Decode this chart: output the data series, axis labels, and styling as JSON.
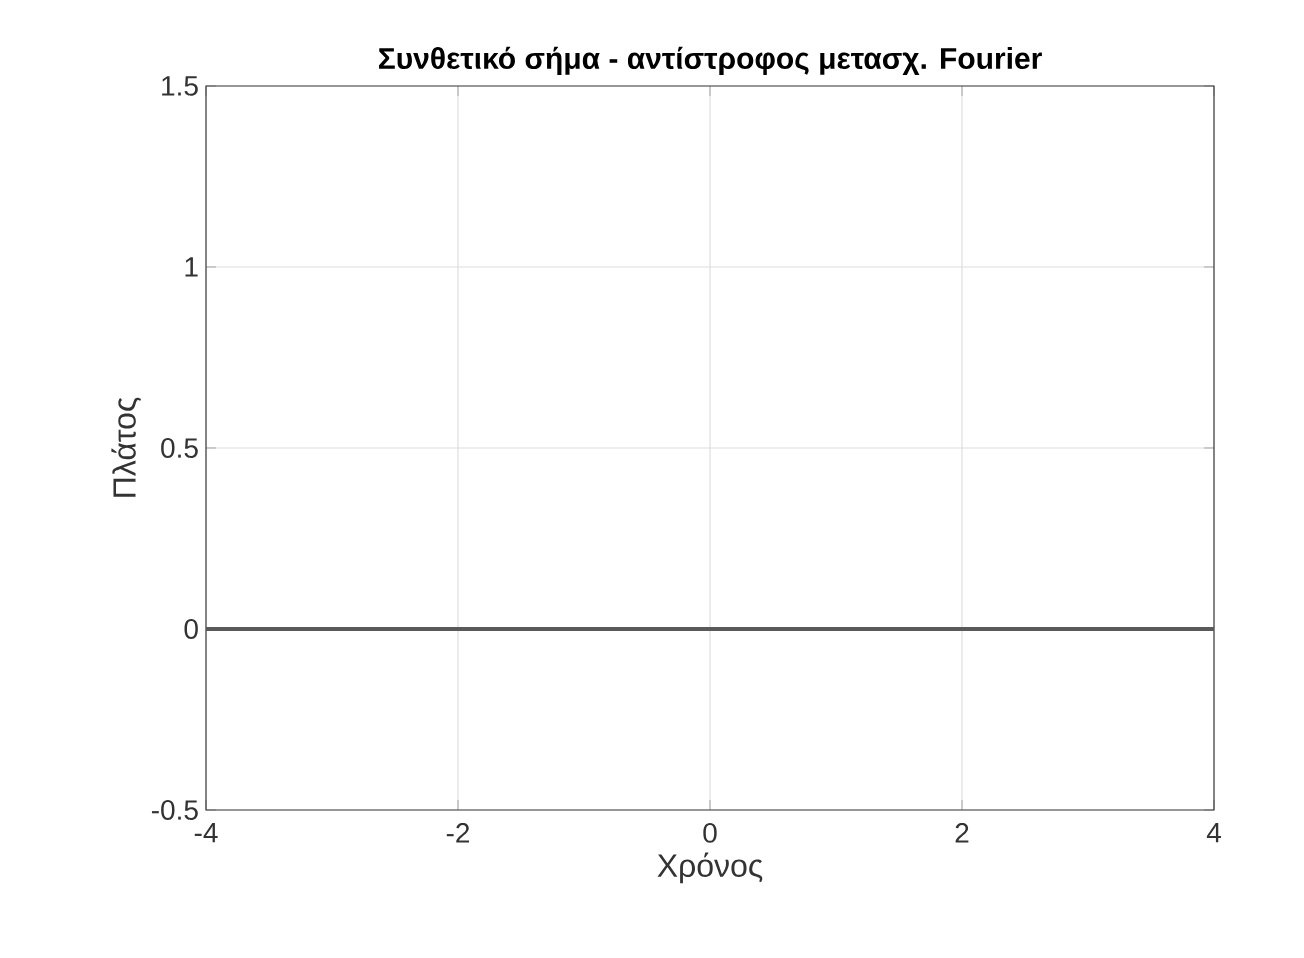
{
  "chart_data": {
    "type": "line",
    "title": "Συνθετικό σήμα - αντίστροφος μετασχ. Fourier",
    "xlabel": "Χρόνος",
    "ylabel": "Πλάτος",
    "x": [
      -4,
      4
    ],
    "series": [
      {
        "color": "#5a5a5a",
        "values": [
          0,
          0
        ]
      }
    ],
    "xlim": [
      -4,
      4
    ],
    "ylim": [
      -0.5,
      1.5
    ],
    "xticks": [
      -4,
      -2,
      0,
      2,
      4
    ],
    "yticks": [
      -0.5,
      0,
      0.5,
      1,
      1.5
    ],
    "grid": true,
    "line_style": "solid"
  }
}
